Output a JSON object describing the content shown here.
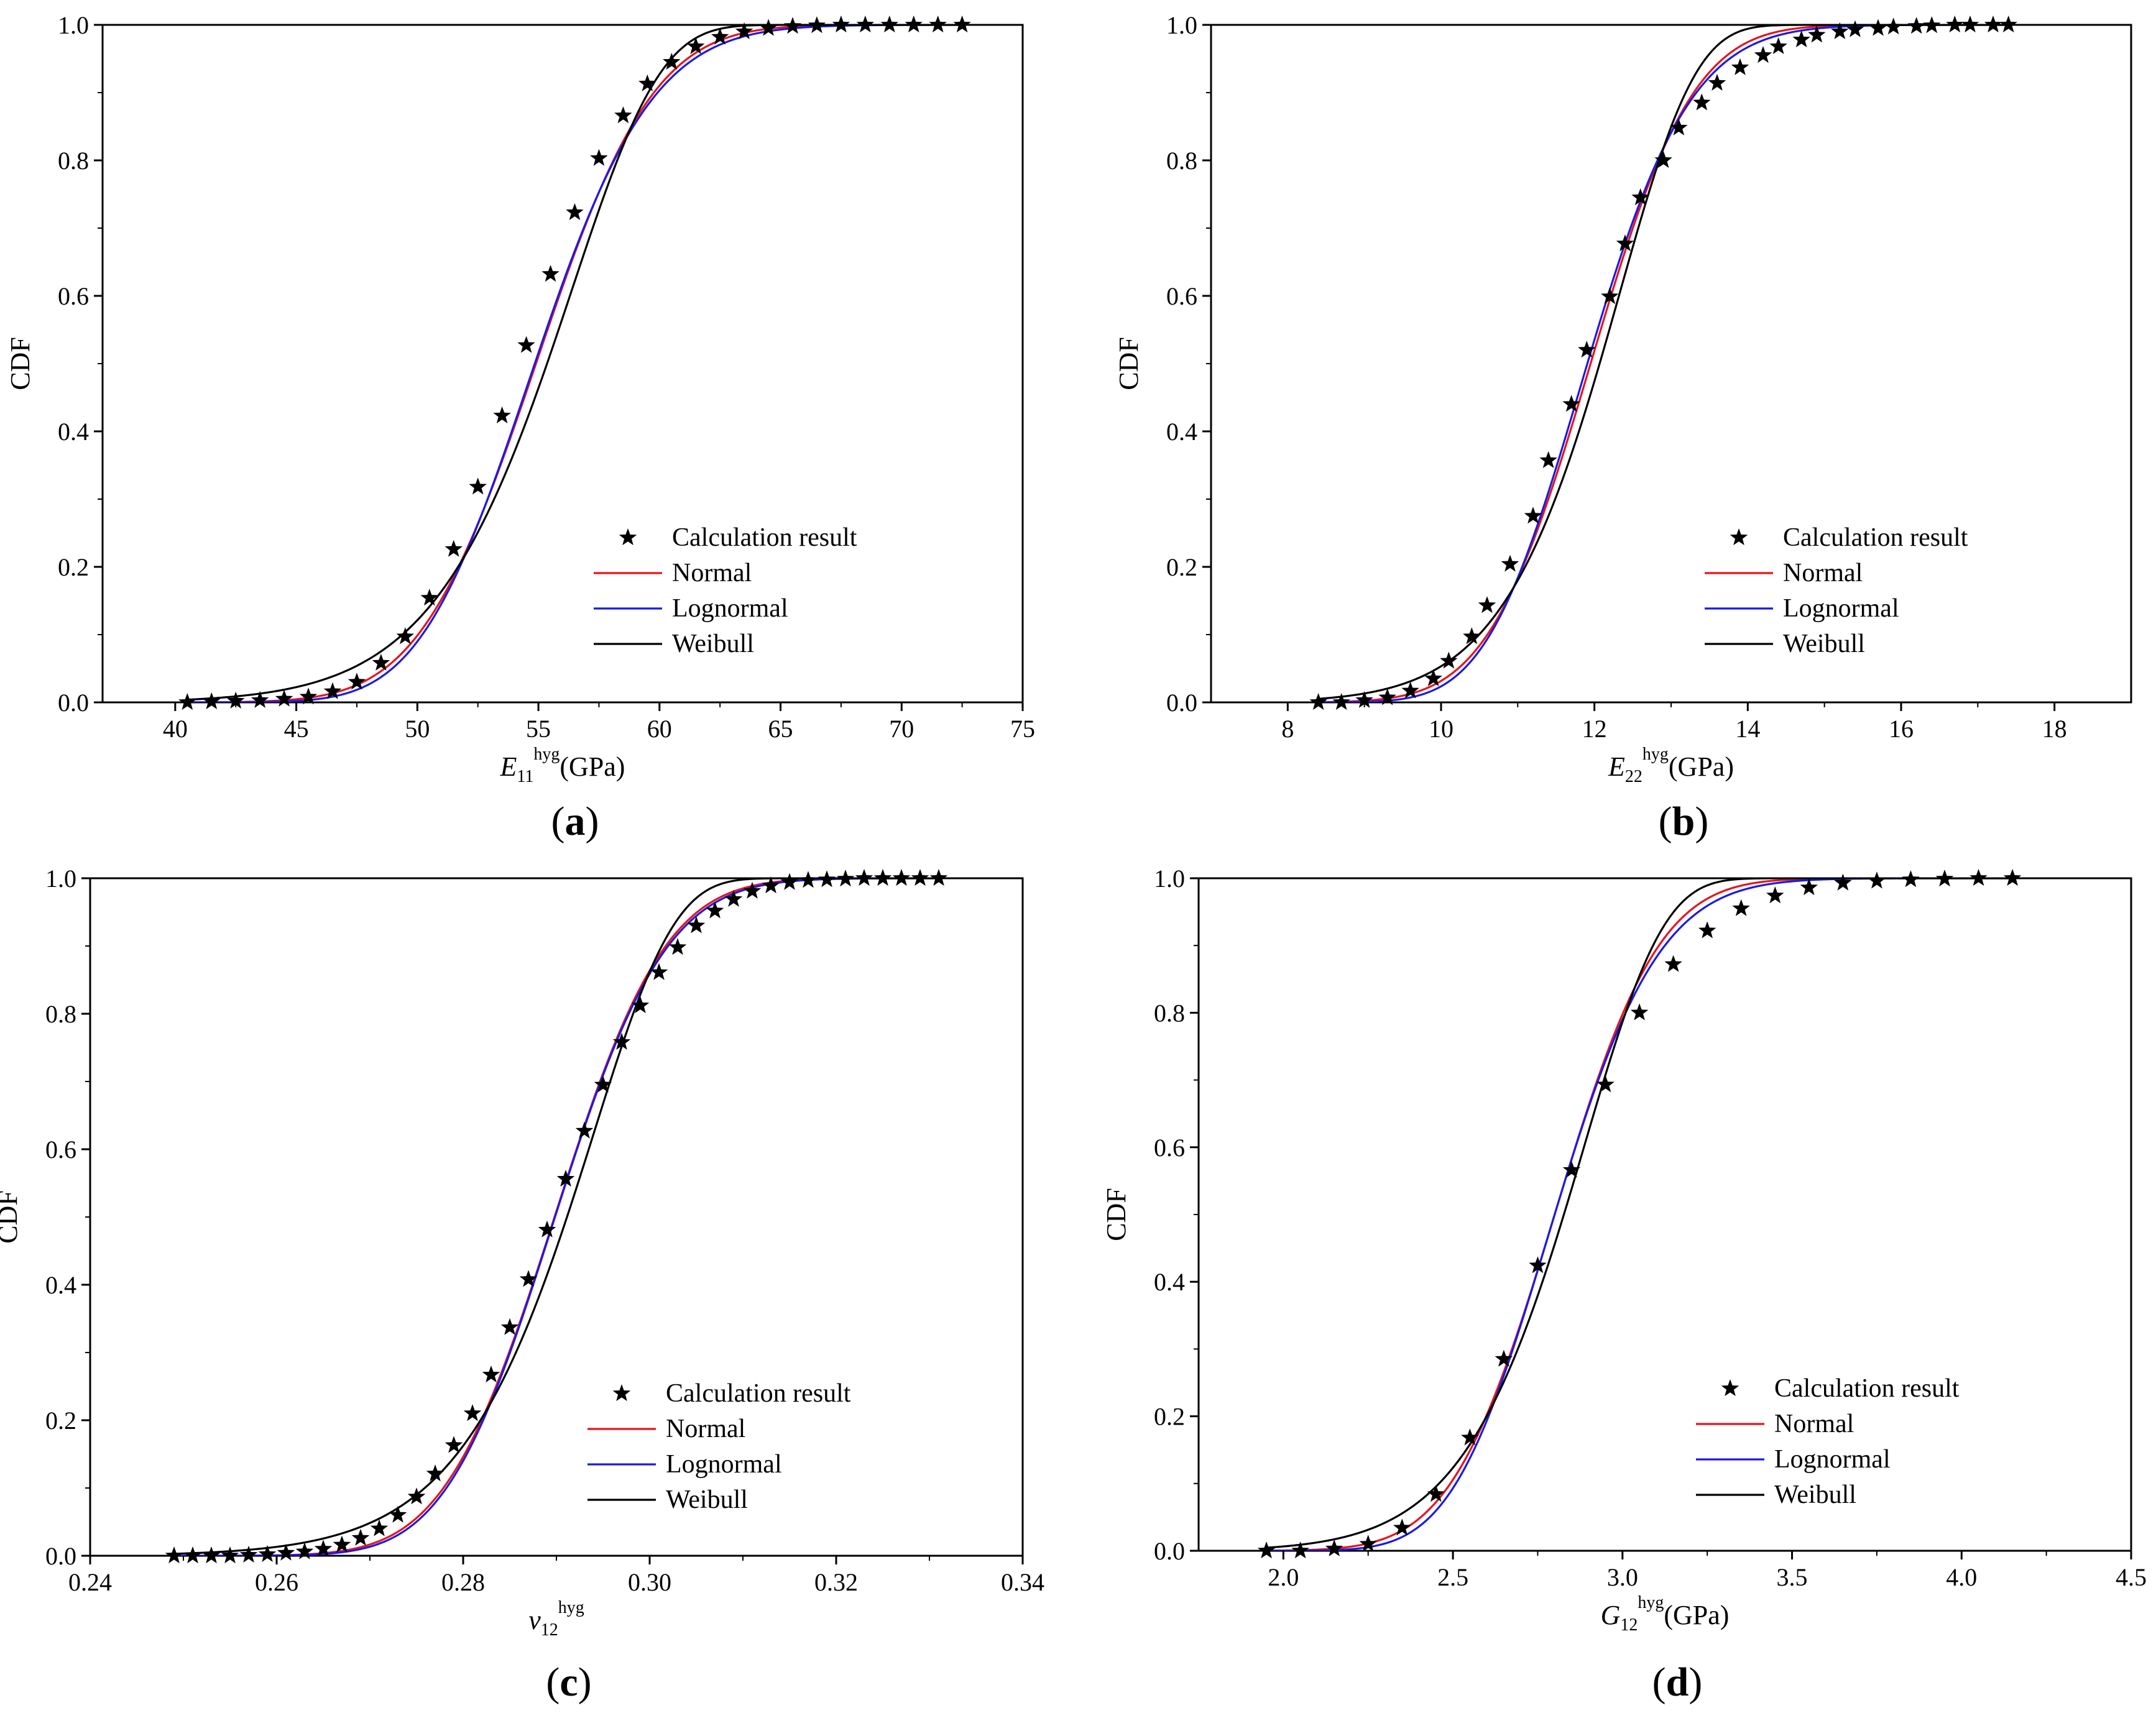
{
  "chart_data": [
    {
      "type": "line",
      "panel_label": "a",
      "ylabel": "CDF",
      "xlabel": {
        "main": "E",
        "sub": "11",
        "sup": "hyg",
        "unit": "(GPa)"
      },
      "xlim": [
        37,
        75
      ],
      "ylim": [
        0,
        1
      ],
      "xticks": [
        40,
        45,
        50,
        55,
        60,
        65,
        70,
        75
      ],
      "xtick_labels": [
        "40",
        "45",
        "50",
        "55",
        "60",
        "65",
        "70",
        "75"
      ],
      "yticks": [
        0,
        0.2,
        0.4,
        0.6,
        0.8,
        1.0
      ],
      "ytick_labels": [
        "0.0",
        "0.2",
        "0.4",
        "0.6",
        "0.8",
        "1.0"
      ],
      "legend_position": "bottom-right",
      "series": [
        {
          "name": "Calculation result",
          "kind": "marker",
          "color": "#000000",
          "x": [
            40.5,
            41.5,
            42.5,
            43.5,
            44.5,
            45.5,
            46.5,
            47.5,
            48.5,
            49.5,
            50.5,
            51.5,
            52.5,
            53.5,
            54.5,
            55.5,
            56.5,
            57.5,
            58.5,
            59.5,
            60.5,
            61.5,
            62.5,
            63.5,
            64.5,
            65.5,
            66.5,
            67.5,
            68.5,
            69.5,
            70.5,
            71.5,
            72.5
          ],
          "y": [
            0.0,
            0.001,
            0.002,
            0.003,
            0.005,
            0.008,
            0.016,
            0.03,
            0.058,
            0.097,
            0.154,
            0.226,
            0.318,
            0.423,
            0.527,
            0.632,
            0.723,
            0.803,
            0.866,
            0.913,
            0.945,
            0.968,
            0.982,
            0.99,
            0.995,
            0.998,
            0.999,
            1.0,
            1.0,
            1.0,
            1.0,
            1.0,
            1.0
          ]
        },
        {
          "name": "Normal",
          "kind": "line",
          "color": "#e8141c",
          "dist": "normal",
          "params": {
            "mu": 54.9,
            "sigma": 3.8
          },
          "xrange": [
            40.5,
            72.5
          ]
        },
        {
          "name": "Lognormal",
          "kind": "line",
          "color": "#1a1ae6",
          "dist": "lognormal",
          "params": {
            "mu": 4.0046,
            "sigma": 0.069
          },
          "xrange": [
            40.5,
            72.5
          ]
        },
        {
          "name": "Weibull",
          "kind": "line",
          "color": "#000000",
          "dist": "weibull",
          "params": {
            "k": 16.5,
            "lambda": 56.6
          },
          "xrange": [
            40.5,
            72.5
          ]
        }
      ]
    },
    {
      "type": "line",
      "panel_label": "b",
      "ylabel": "CDF",
      "xlabel": {
        "main": "E",
        "sub": "22",
        "sup": "hyg",
        "unit": "(GPa)"
      },
      "xlim": [
        7,
        19
      ],
      "ylim": [
        0,
        1
      ],
      "xticks": [
        8,
        10,
        12,
        14,
        16,
        18
      ],
      "xtick_labels": [
        "8",
        "10",
        "12",
        "14",
        "16",
        "18"
      ],
      "yticks": [
        0,
        0.2,
        0.4,
        0.6,
        0.8,
        1.0
      ],
      "ytick_labels": [
        "0.0",
        "0.2",
        "0.4",
        "0.6",
        "0.8",
        "1.0"
      ],
      "legend_position": "bottom-right",
      "series": [
        {
          "name": "Calculation result",
          "kind": "marker",
          "color": "#000000",
          "x": [
            8.4,
            8.7,
            9.0,
            9.3,
            9.6,
            9.9,
            10.1,
            10.4,
            10.6,
            10.9,
            11.2,
            11.4,
            11.7,
            11.9,
            12.2,
            12.4,
            12.6,
            12.9,
            13.1,
            13.4,
            13.6,
            13.9,
            14.2,
            14.4,
            14.7,
            14.9,
            15.2,
            15.4,
            15.7,
            15.9,
            16.2,
            16.4,
            16.7,
            16.9,
            17.2,
            17.4
          ],
          "y": [
            0.0,
            0.0,
            0.003,
            0.007,
            0.017,
            0.035,
            0.061,
            0.097,
            0.143,
            0.204,
            0.275,
            0.357,
            0.44,
            0.52,
            0.599,
            0.677,
            0.745,
            0.8,
            0.848,
            0.885,
            0.914,
            0.937,
            0.955,
            0.968,
            0.978,
            0.985,
            0.99,
            0.993,
            0.995,
            0.997,
            0.998,
            0.999,
            1.0,
            1.0,
            1.0,
            1.0
          ]
        },
        {
          "name": "Normal",
          "kind": "line",
          "color": "#e8141c",
          "dist": "normal",
          "params": {
            "mu": 11.95,
            "sigma": 1.05
          },
          "xrange": [
            8.4,
            17.4
          ]
        },
        {
          "name": "Lognormal",
          "kind": "line",
          "color": "#1a1ae6",
          "dist": "lognormal",
          "params": {
            "mu": 2.4772,
            "sigma": 0.088
          },
          "xrange": [
            8.4,
            17.4
          ]
        },
        {
          "name": "Weibull",
          "kind": "line",
          "color": "#000000",
          "dist": "weibull",
          "params": {
            "k": 13.5,
            "lambda": 12.4
          },
          "xrange": [
            8.4,
            17.4
          ]
        }
      ]
    },
    {
      "type": "line",
      "panel_label": "c",
      "ylabel": "CDF",
      "xlabel": {
        "main": "v",
        "sub": "12",
        "sup": "hyg",
        "unit": ""
      },
      "xlim": [
        0.24,
        0.34
      ],
      "ylim": [
        0,
        1
      ],
      "xticks": [
        0.24,
        0.26,
        0.28,
        0.3,
        0.32,
        0.34
      ],
      "xtick_labels": [
        "0.24",
        "0.26",
        "0.28",
        "0.30",
        "0.32",
        "0.34"
      ],
      "yticks": [
        0,
        0.2,
        0.4,
        0.6,
        0.8,
        1.0
      ],
      "ytick_labels": [
        "0.0",
        "0.2",
        "0.4",
        "0.6",
        "0.8",
        "1.0"
      ],
      "legend_position": "bottom-right",
      "series": [
        {
          "name": "Calculation result",
          "kind": "marker",
          "color": "#000000",
          "x": [
            0.249,
            0.251,
            0.253,
            0.255,
            0.257,
            0.259,
            0.261,
            0.263,
            0.265,
            0.267,
            0.269,
            0.271,
            0.273,
            0.275,
            0.277,
            0.279,
            0.281,
            0.283,
            0.285,
            0.287,
            0.289,
            0.291,
            0.293,
            0.295,
            0.297,
            0.299,
            0.301,
            0.303,
            0.305,
            0.307,
            0.309,
            0.311,
            0.313,
            0.315,
            0.317,
            0.319,
            0.321,
            0.323,
            0.325,
            0.327,
            0.329,
            0.331
          ],
          "y": [
            0.0,
            0.0,
            0.0,
            0.0,
            0.001,
            0.002,
            0.004,
            0.006,
            0.01,
            0.016,
            0.026,
            0.04,
            0.06,
            0.087,
            0.121,
            0.163,
            0.21,
            0.267,
            0.337,
            0.408,
            0.481,
            0.556,
            0.627,
            0.695,
            0.758,
            0.812,
            0.861,
            0.898,
            0.93,
            0.952,
            0.969,
            0.981,
            0.989,
            0.994,
            0.997,
            0.998,
            0.999,
            1.0,
            1.0,
            1.0,
            1.0,
            1.0
          ]
        },
        {
          "name": "Normal",
          "kind": "line",
          "color": "#e8141c",
          "dist": "normal",
          "params": {
            "mu": 0.2898,
            "sigma": 0.0093
          },
          "xrange": [
            0.249,
            0.331
          ]
        },
        {
          "name": "Lognormal",
          "kind": "line",
          "color": "#1a1ae6",
          "dist": "lognormal",
          "params": {
            "mu": -1.2384,
            "sigma": 0.032
          },
          "xrange": [
            0.249,
            0.331
          ]
        },
        {
          "name": "Weibull",
          "kind": "line",
          "color": "#000000",
          "dist": "weibull",
          "params": {
            "k": 35,
            "lambda": 0.2942
          },
          "xrange": [
            0.249,
            0.331
          ]
        }
      ]
    },
    {
      "type": "line",
      "panel_label": "d",
      "ylabel": "CDF",
      "xlabel": {
        "main": "G",
        "sub": "12",
        "sup": "hyg",
        "unit": "(GPa)"
      },
      "xlim": [
        1.75,
        4.5
      ],
      "ylim": [
        0,
        1
      ],
      "xticks": [
        2.0,
        2.5,
        3.0,
        3.5,
        4.0,
        4.5
      ],
      "xtick_labels": [
        "2.0",
        "2.5",
        "3.0",
        "3.5",
        "4.0",
        "4.5"
      ],
      "yticks": [
        0,
        0.2,
        0.4,
        0.6,
        0.8,
        1.0
      ],
      "ytick_labels": [
        "0.0",
        "0.2",
        "0.4",
        "0.6",
        "0.8",
        "1.0"
      ],
      "legend_position": "bottom-right",
      "series": [
        {
          "name": "Calculation result",
          "kind": "marker",
          "color": "#000000",
          "x": [
            1.95,
            2.05,
            2.15,
            2.25,
            2.35,
            2.45,
            2.55,
            2.65,
            2.75,
            2.85,
            2.95,
            3.05,
            3.15,
            3.25,
            3.35,
            3.45,
            3.55,
            3.65,
            3.75,
            3.85,
            3.95,
            4.05,
            4.15
          ],
          "y": [
            0.0,
            0.0,
            0.003,
            0.01,
            0.034,
            0.084,
            0.168,
            0.285,
            0.424,
            0.566,
            0.693,
            0.8,
            0.872,
            0.922,
            0.955,
            0.974,
            0.986,
            0.993,
            0.996,
            0.998,
            0.999,
            1.0,
            1.0
          ]
        },
        {
          "name": "Normal",
          "kind": "line",
          "color": "#e8141c",
          "dist": "normal",
          "params": {
            "mu": 2.8,
            "sigma": 0.24
          },
          "xrange": [
            1.95,
            4.15
          ]
        },
        {
          "name": "Lognormal",
          "kind": "line",
          "color": "#1a1ae6",
          "dist": "lognormal",
          "params": {
            "mu": 1.0296,
            "sigma": 0.0857
          },
          "xrange": [
            1.95,
            4.15
          ]
        },
        {
          "name": "Weibull",
          "kind": "line",
          "color": "#000000",
          "dist": "weibull",
          "params": {
            "k": 13.5,
            "lambda": 2.905
          },
          "xrange": [
            1.95,
            4.15
          ]
        }
      ]
    }
  ]
}
